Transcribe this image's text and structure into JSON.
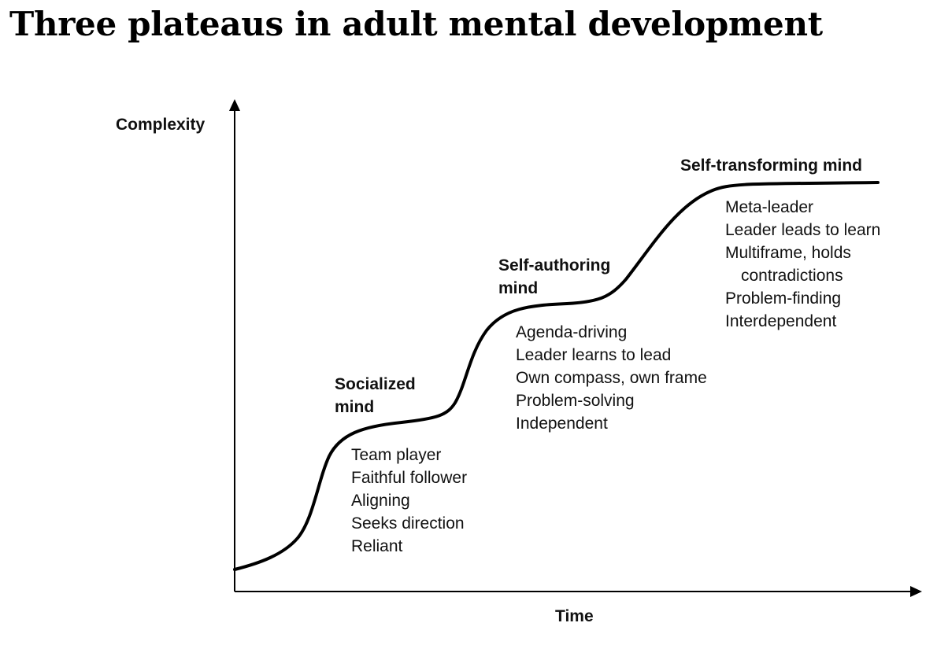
{
  "title": "Three plateaus in adult mental development",
  "axes": {
    "y_label": "Complexity",
    "x_label": "Time"
  },
  "stages": [
    {
      "name": "Socialized mind",
      "items": [
        "Team player",
        "Faithful follower",
        "Aligning",
        "Seeks direction",
        "Reliant"
      ]
    },
    {
      "name": "Self-authoring mind",
      "items": [
        "Agenda-driving",
        "Leader learns to lead",
        "Own compass, own frame",
        "Problem-solving",
        "Independent"
      ]
    },
    {
      "name": "Self-transforming mind",
      "items": [
        "Meta-leader",
        "Leader leads to learn",
        "Multiframe, holds contradictions",
        "Problem-finding",
        "Interdependent"
      ]
    }
  ]
}
